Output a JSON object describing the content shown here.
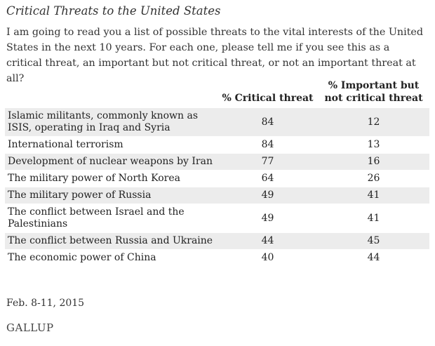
{
  "header": {
    "title": "Critical Threats to the United States",
    "question": "I am going to read you a list of possible threats to the vital interests of the United States in the next 10 years. For each one, please tell me if you see this as a critical threat, an important but not critical threat, or not an important threat at all?"
  },
  "chart_data": {
    "type": "table",
    "title": "Critical Threats to the United States",
    "columns": [
      "",
      "% Critical threat",
      "% Important but not critical threat"
    ],
    "rows": [
      {
        "label": "Islamic militants, commonly known as ISIS, operating in Iraq and Syria",
        "critical": "84",
        "important": "12"
      },
      {
        "label": "International terrorism",
        "critical": "84",
        "important": "13"
      },
      {
        "label": "Development of nuclear weapons by Iran",
        "critical": "77",
        "important": "16"
      },
      {
        "label": "The military power of North Korea",
        "critical": "64",
        "important": "26"
      },
      {
        "label": "The military power of Russia",
        "critical": "49",
        "important": "41"
      },
      {
        "label": "The conflict between Israel and the Palestinians",
        "critical": "49",
        "important": "41"
      },
      {
        "label": "The conflict between Russia and Ukraine",
        "critical": "44",
        "important": "45"
      },
      {
        "label": "The economic power of China",
        "critical": "40",
        "important": "44"
      }
    ],
    "row_shading": [
      "shaded",
      "plain",
      "shaded",
      "plain",
      "shaded",
      "plain",
      "shaded",
      "plain"
    ]
  },
  "footer": {
    "date": "Feb. 8-11, 2015",
    "source": "GALLUP"
  },
  "colors": {
    "shaded_row": "#ececec",
    "text": "#222222"
  }
}
